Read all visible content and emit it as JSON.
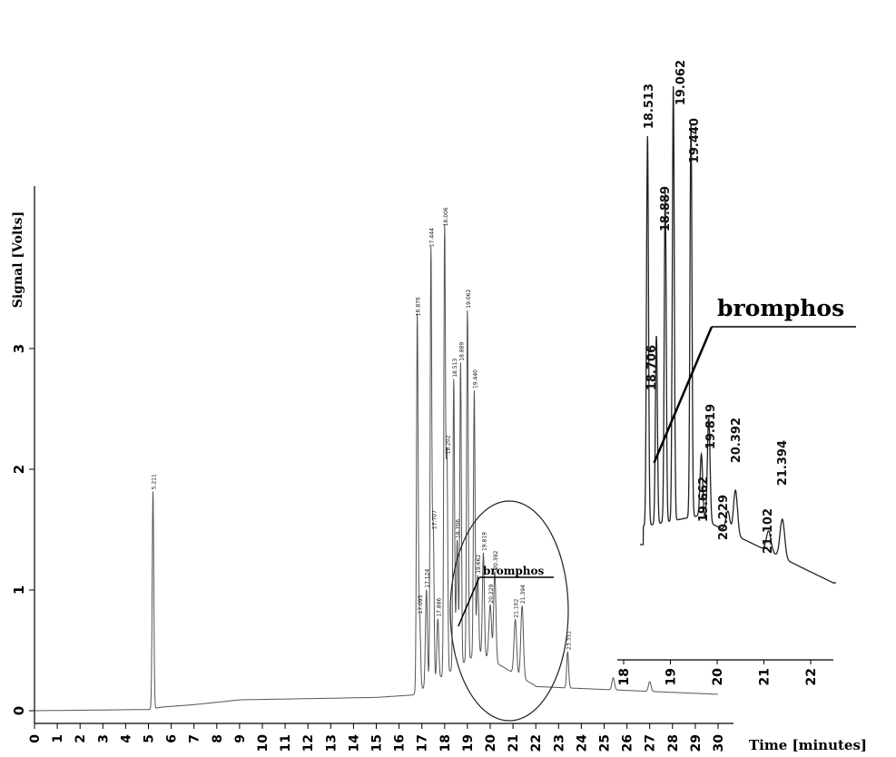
{
  "chart_data": [
    {
      "type": "line",
      "ylabel": "Signal [Volts]",
      "xlabel": "Time [minutes]",
      "xlim": [
        0,
        31
      ],
      "ylim": [
        0,
        4
      ],
      "x_ticks": [
        0,
        1,
        2,
        3,
        4,
        5,
        6,
        7,
        8,
        9,
        10,
        11,
        12,
        13,
        14,
        15,
        16,
        17,
        18,
        19,
        20,
        21,
        22,
        23,
        24,
        25,
        26,
        27,
        28,
        29,
        30
      ],
      "y_ticks": [
        0,
        1,
        2,
        3
      ],
      "grid": false,
      "baseline": [
        [
          0,
          0.0
        ],
        [
          5,
          0.01
        ],
        [
          5.6,
          0.03
        ],
        [
          7,
          0.05
        ],
        [
          9,
          0.09
        ],
        [
          12,
          0.1
        ],
        [
          15,
          0.11
        ],
        [
          16.6,
          0.13
        ]
      ],
      "peaks": [
        {
          "t": 5.2,
          "h": 1.8,
          "w": 0.05,
          "label": "5.211"
        },
        {
          "t": 16.8,
          "h": 3.1,
          "w": 0.05,
          "label": "16.876"
        },
        {
          "t": 16.9,
          "h": 0.62,
          "w": 0.06,
          "label": "17.095"
        },
        {
          "t": 17.2,
          "h": 0.8,
          "w": 0.06,
          "label": "17.124"
        },
        {
          "t": 17.4,
          "h": 3.6,
          "w": 0.05,
          "label": "17.444"
        },
        {
          "t": 17.5,
          "h": 1.25,
          "w": 0.05,
          "label": "17.707"
        },
        {
          "t": 17.7,
          "h": 0.5,
          "w": 0.06,
          "label": "17.886"
        },
        {
          "t": 18.0,
          "h": 3.7,
          "w": 0.05,
          "label": "18.006"
        },
        {
          "t": 18.1,
          "h": 1.8,
          "w": 0.05,
          "label": "18.202"
        },
        {
          "t": 18.4,
          "h": 2.4,
          "w": 0.05,
          "label": "18.513"
        },
        {
          "t": 18.55,
          "h": 1.05,
          "w": 0.06,
          "label": "18.706"
        },
        {
          "t": 18.7,
          "h": 2.5,
          "w": 0.05,
          "label": "18.889"
        },
        {
          "t": 19.0,
          "h": 2.9,
          "w": 0.05,
          "label": "19.062"
        },
        {
          "t": 19.3,
          "h": 2.2,
          "w": 0.05,
          "label": "19.440"
        },
        {
          "t": 19.45,
          "h": 0.65,
          "w": 0.06,
          "label": "19.662"
        },
        {
          "t": 19.7,
          "h": 0.85,
          "w": 0.06,
          "label": "19.819"
        },
        {
          "t": 20.0,
          "h": 0.45,
          "w": 0.08,
          "label": "20.229"
        },
        {
          "t": 20.2,
          "h": 0.75,
          "w": 0.07,
          "label": "20.392"
        },
        {
          "t": 21.1,
          "h": 0.45,
          "w": 0.08,
          "label": "21.102"
        },
        {
          "t": 21.4,
          "h": 0.6,
          "w": 0.08,
          "label": "21.394"
        },
        {
          "t": 23.4,
          "h": 0.3,
          "w": 0.06,
          "label": "23.351"
        },
        {
          "t": 25.4,
          "h": 0.1,
          "w": 0.08,
          "label": ""
        },
        {
          "t": 27.0,
          "h": 0.08,
          "w": 0.08,
          "label": ""
        }
      ],
      "annotations": [
        {
          "text": "bromphos",
          "x": 18.6,
          "y": 0.7
        }
      ]
    },
    {
      "type": "line",
      "note": "enlarged inset",
      "xlim": [
        17.8,
        22.6
      ],
      "x_ticks": [
        18,
        19,
        20,
        21,
        22
      ],
      "peaks": [
        {
          "t": 18.51,
          "label": "18.513"
        },
        {
          "t": 18.7,
          "label": "18.706"
        },
        {
          "t": 18.889,
          "label": "18.889"
        },
        {
          "t": 19.062,
          "label": "19.062"
        },
        {
          "t": 19.44,
          "label": "19.440"
        },
        {
          "t": 19.662,
          "label": "19.662"
        },
        {
          "t": 19.819,
          "label": "19.819"
        },
        {
          "t": 20.229,
          "label": "20.229"
        },
        {
          "t": 20.392,
          "label": "20.392"
        },
        {
          "t": 21.102,
          "label": "21.102"
        },
        {
          "t": 21.394,
          "label": "21.394"
        }
      ],
      "annotations": [
        {
          "text": "bromphos",
          "x": 18.65
        }
      ]
    }
  ]
}
